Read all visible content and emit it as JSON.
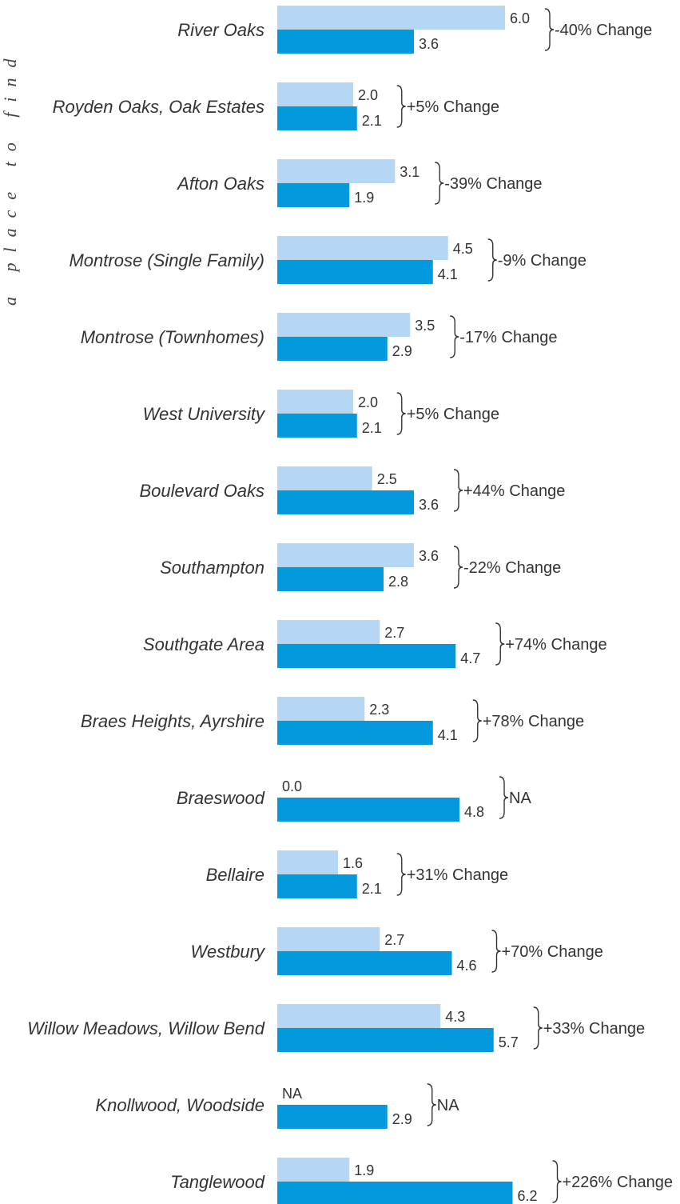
{
  "side_text": "a place to find",
  "chart_data": {
    "type": "bar",
    "orientation": "horizontal",
    "title": "",
    "xlabel": "",
    "ylabel": "",
    "xlim": [
      0,
      7
    ],
    "grid": false,
    "legend": "none",
    "colors": {
      "first": "#b5d7f3",
      "second": "#0499dc"
    },
    "categories": [
      "River Oaks",
      "Royden Oaks, Oak Estates",
      "Afton Oaks",
      "Montrose (Single Family)",
      "Montrose (Townhomes)",
      "West University",
      "Boulevard Oaks",
      "Southampton",
      "Southgate Area",
      "Braes Heights, Ayrshire",
      "Braeswood",
      "Bellaire",
      "Westbury",
      "Willow Meadows, Willow Bend",
      "Knollwood, Woodside",
      "Tanglewood"
    ],
    "series": [
      {
        "values": [
          6.0,
          2.0,
          3.1,
          4.5,
          3.5,
          2.0,
          2.5,
          3.6,
          2.7,
          2.3,
          0.0,
          1.6,
          2.7,
          4.3,
          null,
          1.9
        ],
        "labels": [
          "6.0",
          "2.0",
          "3.1",
          "4.5",
          "3.5",
          "2.0",
          "2.5",
          "3.6",
          "2.7",
          "2.3",
          "0.0",
          "1.6",
          "2.7",
          "4.3",
          "NA",
          "1.9"
        ]
      },
      {
        "values": [
          3.6,
          2.1,
          1.9,
          4.1,
          2.9,
          2.1,
          3.6,
          2.8,
          4.7,
          4.1,
          4.8,
          2.1,
          4.6,
          5.7,
          2.9,
          6.2
        ],
        "labels": [
          "3.6",
          "2.1",
          "1.9",
          "4.1",
          "2.9",
          "2.1",
          "3.6",
          "2.8",
          "4.7",
          "4.1",
          "4.8",
          "2.1",
          "4.6",
          "5.7",
          "2.9",
          "6.2"
        ]
      }
    ],
    "changes": [
      "-40% Change",
      "+5% Change",
      "-39% Change",
      "-9% Change",
      "-17% Change",
      "+5% Change",
      "+44% Change",
      "-22% Change",
      "+74% Change",
      "+78% Change",
      "NA",
      "+31% Change",
      "+70% Change",
      "+33% Change",
      "NA",
      "+226% Change"
    ]
  }
}
